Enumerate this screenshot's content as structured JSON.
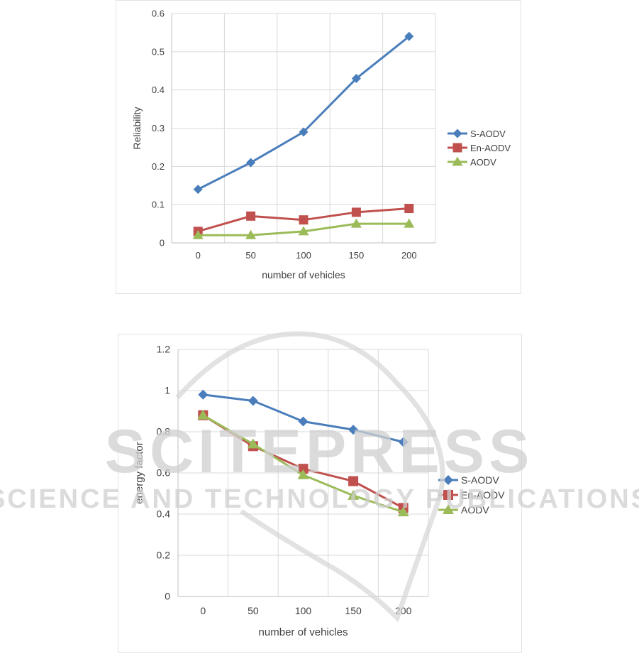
{
  "watermark": {
    "line1": "SCITEPRESS",
    "line2": "SCIENCE AND TECHNOLOGY PUBLICATIONS"
  },
  "chart_data": [
    {
      "type": "line",
      "title": "",
      "xlabel": "number of vehicles",
      "ylabel": "Reliability",
      "categories": [
        "0",
        "50",
        "100",
        "150",
        "200"
      ],
      "ylim": [
        0,
        0.6
      ],
      "yticks": [
        "0",
        "0.1",
        "0.2",
        "0.3",
        "0.4",
        "0.5",
        "0.6"
      ],
      "grid": true,
      "legend": "right",
      "series": [
        {
          "name": "S-AODV",
          "values": [
            0.14,
            0.21,
            0.29,
            0.43,
            0.54
          ],
          "color": "#4a7ebb",
          "marker": "diamond"
        },
        {
          "name": "En-AODV",
          "values": [
            0.03,
            0.07,
            0.06,
            0.08,
            0.09
          ],
          "color": "#c0504d",
          "marker": "square"
        },
        {
          "name": "AODV",
          "values": [
            0.02,
            0.02,
            0.03,
            0.05,
            0.05
          ],
          "color": "#9bbb59",
          "marker": "triangle"
        }
      ]
    },
    {
      "type": "line",
      "title": "",
      "xlabel": "number of vehicles",
      "ylabel": "energy factor",
      "categories": [
        "0",
        "50",
        "100",
        "150",
        "200"
      ],
      "ylim": [
        0,
        1.2
      ],
      "yticks": [
        "0",
        "0.2",
        "0.4",
        "0.6",
        "0.8",
        "1",
        "1.2"
      ],
      "grid": true,
      "legend": "right",
      "series": [
        {
          "name": "S-AODV",
          "values": [
            0.98,
            0.95,
            0.85,
            0.81,
            0.75
          ],
          "color": "#4a7ebb",
          "marker": "diamond"
        },
        {
          "name": "En-AODV",
          "values": [
            0.88,
            0.73,
            0.62,
            0.56,
            0.43
          ],
          "color": "#c0504d",
          "marker": "square"
        },
        {
          "name": "AODV",
          "values": [
            0.88,
            0.74,
            0.59,
            0.49,
            0.41
          ],
          "color": "#9bbb59",
          "marker": "triangle"
        }
      ]
    }
  ]
}
